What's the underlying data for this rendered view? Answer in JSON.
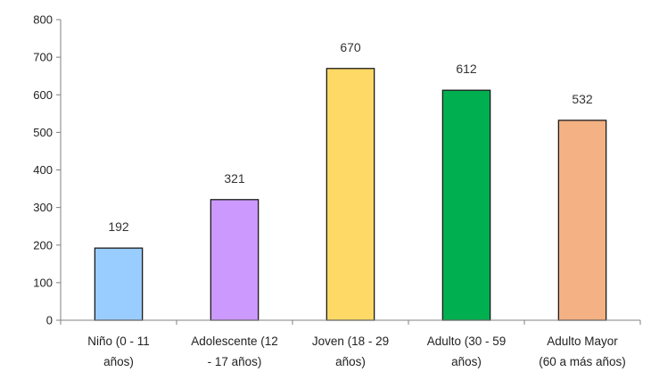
{
  "chart_data": {
    "type": "bar",
    "categories": [
      [
        "Niño (0 - 11",
        "años)"
      ],
      [
        "Adolescente (12",
        "- 17 años)"
      ],
      [
        "Joven (18 - 29",
        "años)"
      ],
      [
        "Adulto (30 - 59",
        "años)"
      ],
      [
        "Adulto Mayor",
        "(60 a más años)"
      ]
    ],
    "values": [
      192,
      321,
      670,
      612,
      532
    ],
    "value_labels": [
      "192",
      "321",
      "670",
      "612",
      "532"
    ],
    "colors": [
      "#99ccff",
      "#cc99ff",
      "#ffd966",
      "#00b050",
      "#f4b183"
    ],
    "ylim": [
      0,
      800
    ],
    "yticks": [
      0,
      100,
      200,
      300,
      400,
      500,
      600,
      700,
      800
    ],
    "ytick_labels": [
      "0",
      "100",
      "200",
      "300",
      "400",
      "500",
      "600",
      "700",
      "800"
    ],
    "grid": false,
    "legend": "none"
  }
}
